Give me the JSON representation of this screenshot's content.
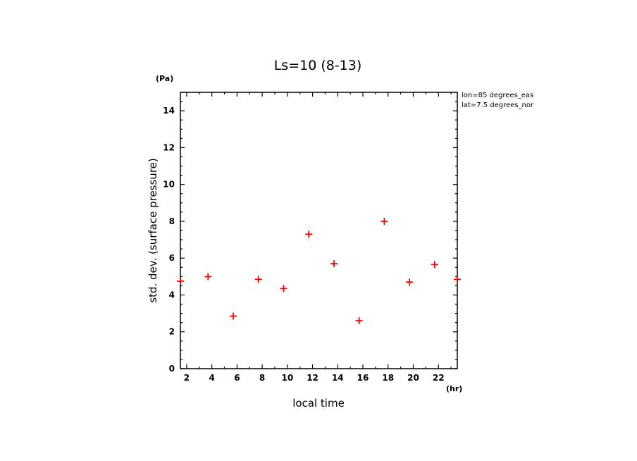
{
  "chart_data": {
    "type": "scatter",
    "title": "Ls=10 (8-13)",
    "xlabel": "local time",
    "ylabel": "std. dev. (surface pressure)",
    "x_unit": "(hr)",
    "y_unit": "(Pa)",
    "xlim": [
      1.5,
      23.5
    ],
    "ylim": [
      0,
      15
    ],
    "x_ticks": [
      "2",
      "4",
      "6",
      "8",
      "10",
      "12",
      "14",
      "16",
      "18",
      "20",
      "22"
    ],
    "y_ticks": [
      "0",
      "2",
      "4",
      "6",
      "8",
      "10",
      "12",
      "14"
    ],
    "marker": "+",
    "marker_color": "#ff0000",
    "grid": false,
    "series": [
      {
        "x": [
          1.5,
          3.7,
          5.7,
          7.7,
          9.7,
          11.7,
          13.7,
          15.7,
          17.7,
          19.7,
          21.7,
          23.5
        ],
        "values": [
          4.75,
          5.0,
          2.85,
          4.85,
          4.35,
          7.3,
          5.7,
          2.6,
          8.0,
          4.7,
          5.65,
          4.85
        ]
      }
    ],
    "annotations": [
      "lon=85 degrees_eas",
      "lat=7.5 degrees_nor"
    ]
  }
}
